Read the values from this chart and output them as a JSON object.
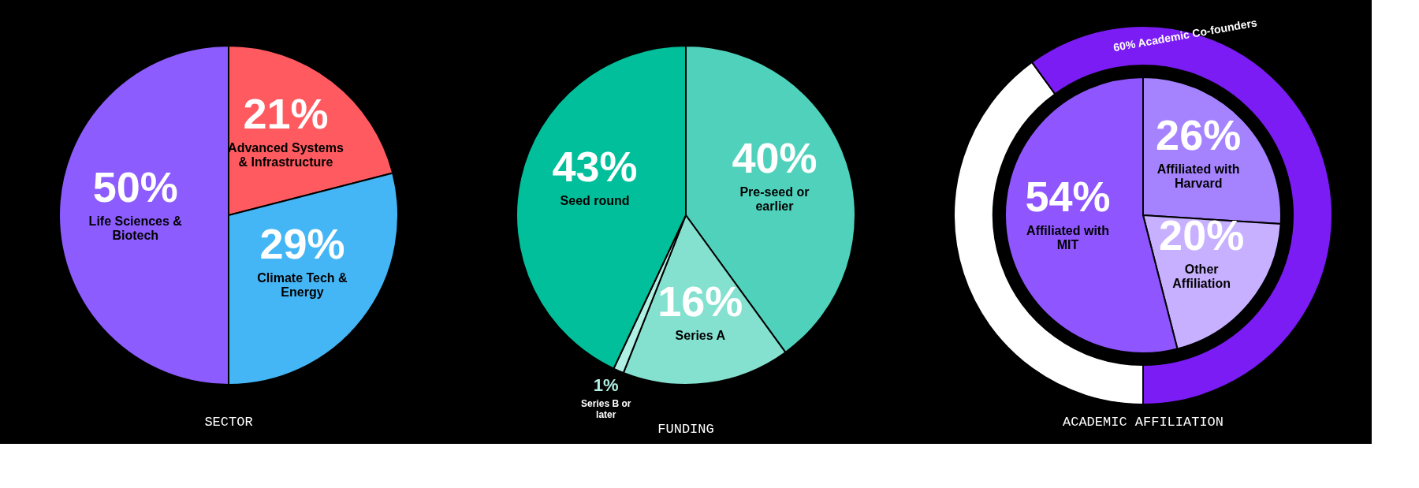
{
  "chart_data": [
    {
      "type": "pie",
      "title": "SECTOR",
      "categories": [
        "Advanced Systems & Infrastructure",
        "Climate Tech & Energy",
        "Life Sciences & Biotech"
      ],
      "values": [
        21,
        29,
        50
      ],
      "colors": [
        "#ff5a5f",
        "#45b6f5",
        "#8c5cff"
      ],
      "value_labels": [
        "21%",
        "29%",
        "50%"
      ]
    },
    {
      "type": "pie",
      "title": "FUNDING",
      "categories": [
        "Pre-seed or earlier",
        "Series A",
        "Series B or later",
        "Seed round"
      ],
      "values": [
        40,
        16,
        1,
        43
      ],
      "colors": [
        "#4fd1bb",
        "#84e0cf",
        "#b0efe3",
        "#00bf9a"
      ],
      "value_labels": [
        "40%",
        "16%",
        "1%",
        "43%"
      ]
    },
    {
      "type": "donut",
      "title": "ACADEMIC AFFILIATION",
      "categories": [
        null,
        "Academic Co-founders",
        "Affiliated with Harvard",
        "Other Affiliation",
        "Affiliated with MIT"
      ],
      "colors": [
        "#ffffff",
        "#7b1cf5",
        "#a583ff",
        "#c7b0ff",
        "#8f55ff"
      ],
      "value_labels": [
        null,
        "60%",
        "26%",
        "20%",
        "54%"
      ],
      "series": [
        {
          "type": "pie",
          "values": [
            null,
            null,
            26,
            20,
            54
          ]
        },
        {
          "type": "donut",
          "values": [
            40,
            60,
            null,
            null,
            null
          ]
        }
      ]
    }
  ]
}
